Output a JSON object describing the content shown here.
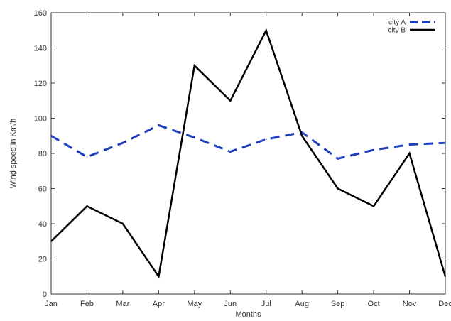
{
  "chart_data": {
    "type": "line",
    "title": "",
    "xlabel": "Months",
    "ylabel": "Wind speed in Km/h",
    "categories": [
      "Jan",
      "Feb",
      "Mar",
      "Apr",
      "May",
      "Jun",
      "Jul",
      "Aug",
      "Sep",
      "Oct",
      "Nov",
      "Dec"
    ],
    "ylim": [
      0,
      160
    ],
    "yticks": [
      0,
      20,
      40,
      60,
      80,
      100,
      120,
      140,
      160
    ],
    "grid": false,
    "legend_position": "top-right",
    "series": [
      {
        "name": "city A",
        "values": [
          90,
          78,
          86,
          96,
          89,
          81,
          88,
          92,
          77,
          82,
          85,
          86
        ],
        "color": "#1f3fbf",
        "style": "dashed"
      },
      {
        "name": "city B",
        "values": [
          30,
          50,
          40,
          10,
          130,
          110,
          150,
          90,
          60,
          50,
          80,
          10
        ],
        "color": "#000000",
        "style": "solid"
      }
    ]
  }
}
